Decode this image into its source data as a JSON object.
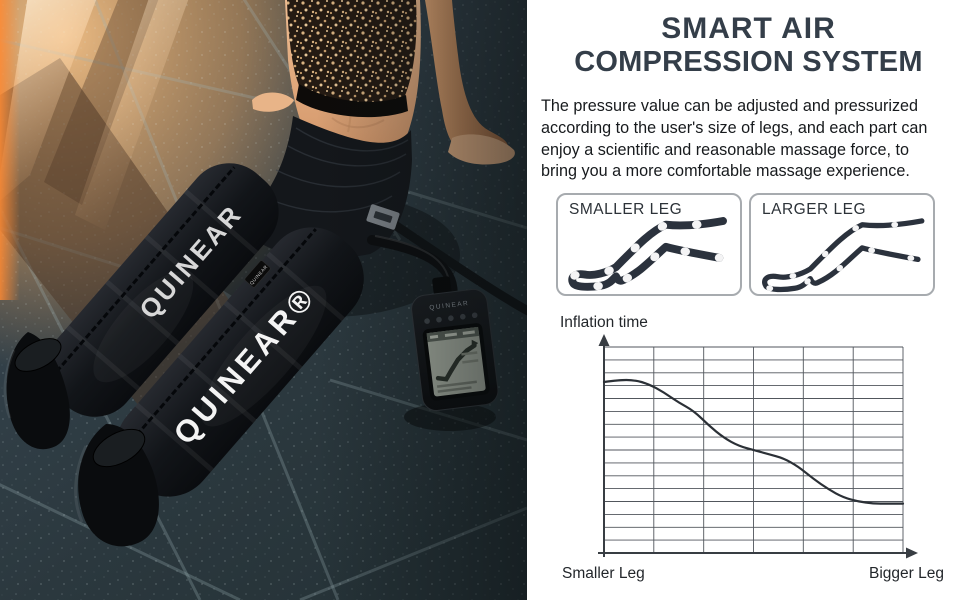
{
  "page": {
    "background": "#ffffff"
  },
  "photo": {
    "sleeve_brand_text": "QUINEAR®",
    "sleeve_brand_partial_text": "QUINEAR",
    "sleeve_tag_text": "QUINEAR",
    "controller_brand_text": "QUINEAR",
    "colors": {
      "floor_dark": "#2c393e",
      "floor_warm": "#cf9a63",
      "sunlight": "#ffc183",
      "sleeve_black": "#101317",
      "skin": "#e2aa7e"
    }
  },
  "panel": {
    "title_line1": "SMART AIR",
    "title_line2": "COMPRESSION SYSTEM",
    "title_color": "#343e49",
    "paragraph_lines": [
      "The pressure value can be adjusted and pressurized",
      "according to the user's size of legs, and each part can",
      "enjoy a scientific and reasonable massage force, to",
      "bring you a more comfortable massage experience."
    ],
    "diagrams": [
      {
        "label": "SMALLER LEG",
        "band_thickness": "thick"
      },
      {
        "label": "LARGER LEG",
        "band_thickness": "thin"
      }
    ]
  },
  "chart_data": {
    "type": "line",
    "title": "",
    "ylabel": "Inflation time",
    "xlabel": "",
    "x_axis_left_label": "Smaller Leg",
    "x_axis_right_label": "Bigger Leg",
    "description": "Inflation time decreases as leg size increases",
    "grid": {
      "cols": 6,
      "rows": 16
    },
    "legend": null,
    "axis_color": "#383d43",
    "grid_color": "#51565c",
    "curve_color": "#2b3036",
    "points": [
      [
        0.0,
        0.83
      ],
      [
        0.05,
        0.84
      ],
      [
        0.1,
        0.84
      ],
      [
        0.15,
        0.82
      ],
      [
        0.2,
        0.78
      ],
      [
        0.25,
        0.73
      ],
      [
        0.3,
        0.69
      ],
      [
        0.35,
        0.62
      ],
      [
        0.4,
        0.56
      ],
      [
        0.45,
        0.52
      ],
      [
        0.5,
        0.5
      ],
      [
        0.55,
        0.48
      ],
      [
        0.6,
        0.46
      ],
      [
        0.65,
        0.42
      ],
      [
        0.7,
        0.36
      ],
      [
        0.75,
        0.31
      ],
      [
        0.8,
        0.27
      ],
      [
        0.85,
        0.25
      ],
      [
        0.9,
        0.24
      ],
      [
        0.95,
        0.24
      ],
      [
        1.0,
        0.24
      ]
    ]
  }
}
